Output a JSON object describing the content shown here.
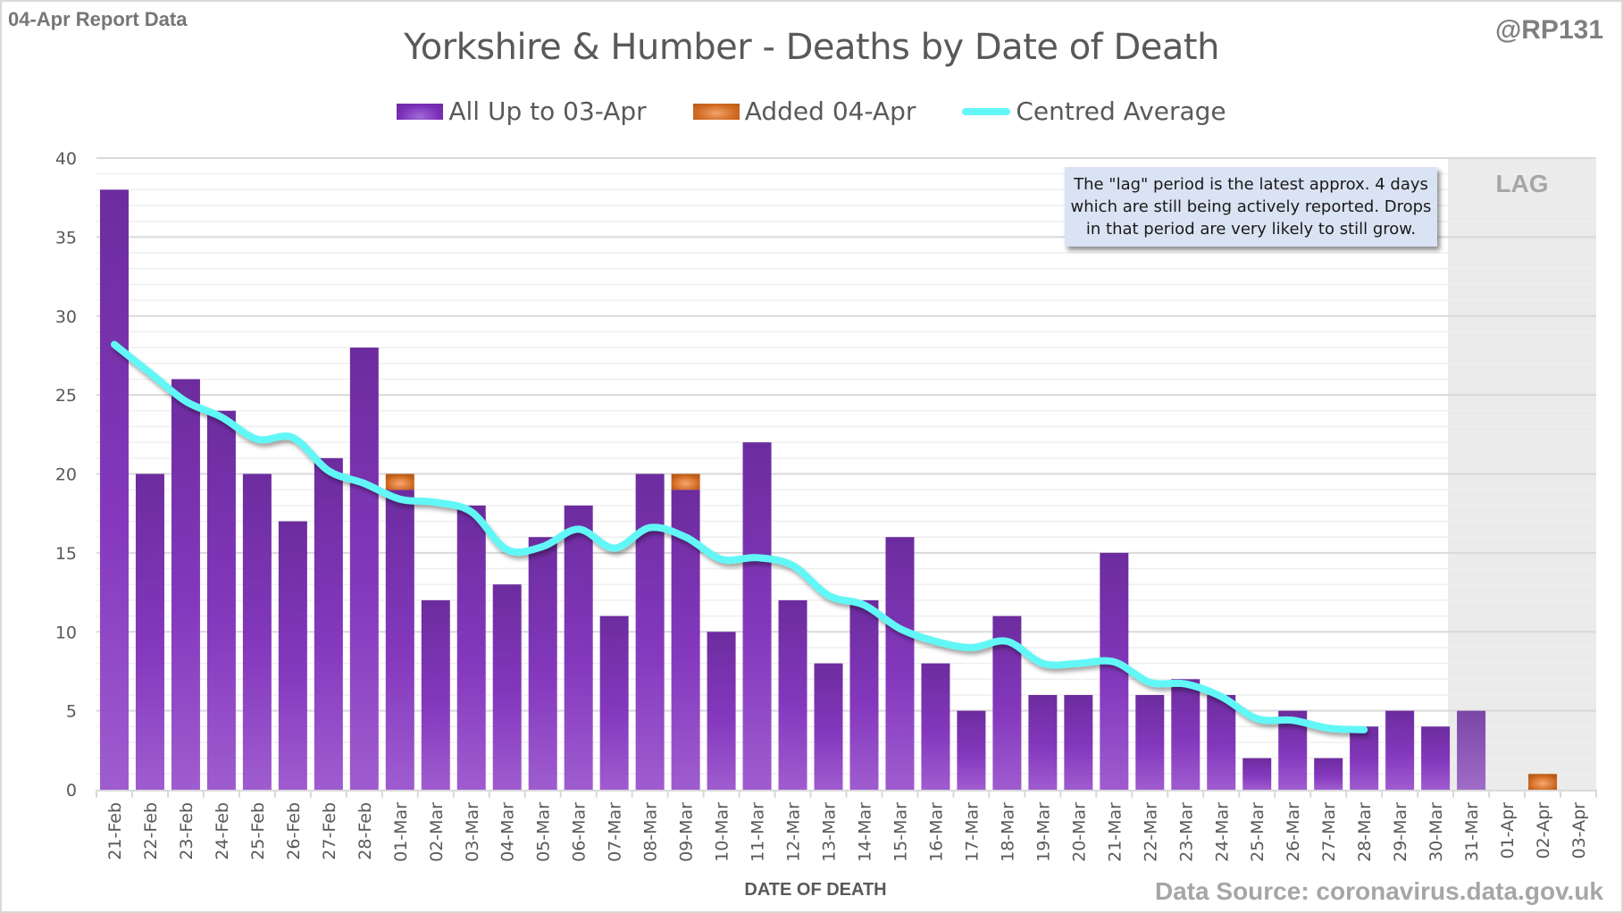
{
  "header": {
    "report_tag": "04-Apr Report Data",
    "handle": "@RP131"
  },
  "annotation": {
    "text": "The \"lag\" period is the latest approx. 4 days which are still being actively reported.  Drops in that period are very likely to still grow.",
    "lag_label": "LAG"
  },
  "footer": {
    "source": "Data Source: coronavirus.data.gov.uk"
  },
  "colors": {
    "bar_main": "#7b30b5",
    "bar_added": "#d2691e",
    "average_line": "#62f7f7",
    "lag_shade": "#ebebeb",
    "annotation_bg": "#dae3f3"
  },
  "chart_data": {
    "type": "bar",
    "title": "Yorkshire & Humber - Deaths by Date of Death",
    "xlabel": "DATE OF DEATH",
    "ylabel": "",
    "ylim": [
      0,
      40
    ],
    "yticks": [
      0,
      5,
      10,
      15,
      20,
      25,
      30,
      35,
      40
    ],
    "grid": true,
    "stacked": true,
    "legend_position": "top-center",
    "legend": [
      "All Up to 03-Apr",
      "Added 04-Apr",
      "Centred Average"
    ],
    "lag_period": [
      "31-Mar",
      "03-Apr"
    ],
    "categories": [
      "21-Feb",
      "22-Feb",
      "23-Feb",
      "24-Feb",
      "25-Feb",
      "26-Feb",
      "27-Feb",
      "28-Feb",
      "01-Mar",
      "02-Mar",
      "03-Mar",
      "04-Mar",
      "05-Mar",
      "06-Mar",
      "07-Mar",
      "08-Mar",
      "09-Mar",
      "10-Mar",
      "11-Mar",
      "12-Mar",
      "13-Mar",
      "14-Mar",
      "15-Mar",
      "16-Mar",
      "17-Mar",
      "18-Mar",
      "19-Mar",
      "20-Mar",
      "21-Mar",
      "22-Mar",
      "23-Mar",
      "24-Mar",
      "25-Mar",
      "26-Mar",
      "27-Mar",
      "28-Mar",
      "29-Mar",
      "30-Mar",
      "31-Mar",
      "01-Apr",
      "02-Apr",
      "03-Apr"
    ],
    "series": [
      {
        "name": "All Up to 03-Apr",
        "type": "bar",
        "values": [
          38,
          20,
          26,
          24,
          20,
          17,
          21,
          28,
          19,
          12,
          18,
          13,
          16,
          18,
          11,
          20,
          19,
          10,
          22,
          12,
          8,
          12,
          16,
          8,
          5,
          11,
          6,
          6,
          15,
          6,
          7,
          6,
          2,
          5,
          2,
          4,
          5,
          4,
          5,
          0,
          0,
          0
        ]
      },
      {
        "name": "Added 04-Apr",
        "type": "bar",
        "values": [
          0,
          0,
          0,
          0,
          0,
          0,
          0,
          0,
          1,
          0,
          0,
          0,
          0,
          0,
          0,
          0,
          1,
          0,
          0,
          0,
          0,
          0,
          0,
          0,
          0,
          0,
          0,
          0,
          0,
          0,
          0,
          0,
          0,
          0,
          0,
          0,
          0,
          0,
          0,
          0,
          1,
          0
        ]
      },
      {
        "name": "Centred Average",
        "type": "line",
        "values": [
          28.2,
          26.4,
          24.6,
          23.6,
          22.2,
          22.3,
          20.2,
          19.4,
          18.4,
          18.2,
          17.6,
          15.2,
          15.4,
          16.5,
          15.3,
          16.6,
          16.0,
          14.6,
          14.7,
          14.2,
          12.3,
          11.7,
          10.2,
          9.4,
          9.0,
          9.4,
          8.0,
          8.0,
          8.1,
          6.8,
          6.7,
          5.9,
          4.5,
          4.4,
          3.9,
          3.8,
          null,
          null,
          null,
          null,
          null,
          null
        ]
      }
    ]
  }
}
